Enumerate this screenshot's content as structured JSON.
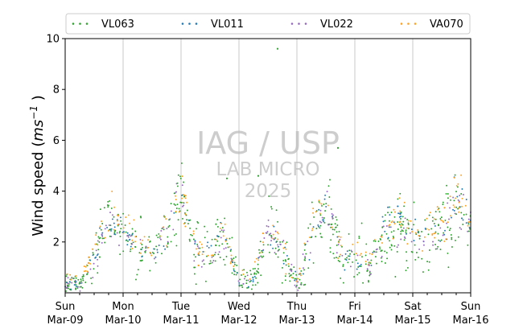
{
  "chart_data": {
    "type": "scatter",
    "ylabel": "Wind speed (ms⁻¹ )",
    "ylabel_parts": {
      "main": "Wind speed (",
      "unit": "ms",
      "exp": "−1",
      "close": " )"
    },
    "xlabel": "",
    "ylim": [
      0,
      10
    ],
    "y_ticks": [
      "2",
      "4",
      "6",
      "8",
      "10"
    ],
    "x_range_days": [
      "2025-03-09",
      "2025-03-16"
    ],
    "x_ticks": [
      {
        "day": "Sun",
        "date": "Mar-09"
      },
      {
        "day": "Mon",
        "date": "Mar-10"
      },
      {
        "day": "Tue",
        "date": "Mar-11"
      },
      {
        "day": "Wed",
        "date": "Mar-12"
      },
      {
        "day": "Thu",
        "date": "Mar-13"
      },
      {
        "day": "Fri",
        "date": "Mar-14"
      },
      {
        "day": "Sat",
        "date": "Mar-15"
      },
      {
        "day": "Sun",
        "date": "Mar-16"
      }
    ],
    "grid": "vertical",
    "legend_position": "top",
    "series": [
      {
        "name": "VL063",
        "color": "#2ca02c"
      },
      {
        "name": "VL011",
        "color": "#1f77b4"
      },
      {
        "name": "VL022",
        "color": "#9467bd"
      },
      {
        "name": "VA070",
        "color": "#ff9f1a"
      }
    ],
    "daily_profile": {
      "dates": [
        "Mar-09 00:00",
        "Mar-09 06:00",
        "Mar-09 12:00",
        "Mar-09 18:00",
        "Mar-10 00:00",
        "Mar-10 06:00",
        "Mar-10 12:00",
        "Mar-10 18:00",
        "Mar-11 00:00",
        "Mar-11 06:00",
        "Mar-11 12:00",
        "Mar-11 18:00",
        "Mar-12 00:00",
        "Mar-12 06:00",
        "Mar-12 12:00",
        "Mar-12 18:00",
        "Mar-13 00:00",
        "Mar-13 06:00",
        "Mar-13 12:00",
        "Mar-13 18:00",
        "Mar-14 00:00",
        "Mar-14 06:00",
        "Mar-14 12:00",
        "Mar-14 18:00",
        "Mar-15 00:00",
        "Mar-15 06:00",
        "Mar-15 12:00",
        "Mar-15 18:00",
        "Mar-16 00:00"
      ],
      "values": [
        0.4,
        0.3,
        1.4,
        2.8,
        2.3,
        1.8,
        1.5,
        2.4,
        3.8,
        1.5,
        1.6,
        2.3,
        0.4,
        0.4,
        2.5,
        1.6,
        0.3,
        2.2,
        3.5,
        1.6,
        1.3,
        1.0,
        2.3,
        2.7,
        2.1,
        2.1,
        2.4,
        3.6,
        2.6
      ]
    },
    "spikes": [
      {
        "x": "Mar-12 08:00",
        "y": 4.6
      },
      {
        "x": "Mar-12 16:00",
        "y": 9.6
      },
      {
        "x": "Mar-13 17:00",
        "y": 5.7
      },
      {
        "x": "Mar-11 19:00",
        "y": 4.5
      }
    ]
  },
  "watermark": {
    "line1": "IAG / USP",
    "line2": "LAB MICRO",
    "line3": "2025"
  }
}
